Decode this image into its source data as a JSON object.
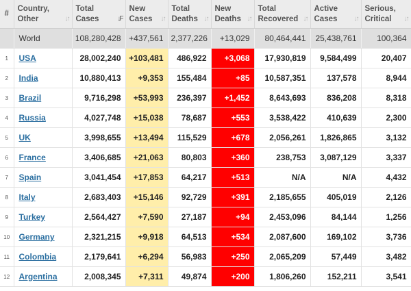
{
  "headers": [
    {
      "l1": "#",
      "l2": "",
      "sort": false
    },
    {
      "l1": "Country,",
      "l2": "Other",
      "sort": true
    },
    {
      "l1": "Total",
      "l2": "Cases",
      "sort": true,
      "active": true
    },
    {
      "l1": "New",
      "l2": "Cases",
      "sort": true
    },
    {
      "l1": "Total",
      "l2": "Deaths",
      "sort": true
    },
    {
      "l1": "New",
      "l2": "Deaths",
      "sort": true
    },
    {
      "l1": "Total",
      "l2": "Recovered",
      "sort": true
    },
    {
      "l1": "Active",
      "l2": "Cases",
      "sort": true
    },
    {
      "l1": "Serious,",
      "l2": "Critical",
      "sort": true
    }
  ],
  "sort_icons": {
    "inactive": "↓↑",
    "active": "↓F"
  },
  "world": {
    "country": "World",
    "total_cases": "108,280,428",
    "new_cases": "+437,561",
    "total_deaths": "2,377,226",
    "new_deaths": "+13,029",
    "total_recovered": "80,464,441",
    "active_cases": "25,438,761",
    "serious": "100,364"
  },
  "rows": [
    {
      "num": "1",
      "country": "USA",
      "total_cases": "28,002,240",
      "new_cases": "+103,481",
      "total_deaths": "486,922",
      "new_deaths": "+3,068",
      "total_recovered": "17,930,819",
      "active_cases": "9,584,499",
      "serious": "20,407"
    },
    {
      "num": "2",
      "country": "India",
      "total_cases": "10,880,413",
      "new_cases": "+9,353",
      "total_deaths": "155,484",
      "new_deaths": "+85",
      "total_recovered": "10,587,351",
      "active_cases": "137,578",
      "serious": "8,944"
    },
    {
      "num": "3",
      "country": "Brazil",
      "total_cases": "9,716,298",
      "new_cases": "+53,993",
      "total_deaths": "236,397",
      "new_deaths": "+1,452",
      "total_recovered": "8,643,693",
      "active_cases": "836,208",
      "serious": "8,318"
    },
    {
      "num": "4",
      "country": "Russia",
      "total_cases": "4,027,748",
      "new_cases": "+15,038",
      "total_deaths": "78,687",
      "new_deaths": "+553",
      "total_recovered": "3,538,422",
      "active_cases": "410,639",
      "serious": "2,300"
    },
    {
      "num": "5",
      "country": "UK",
      "total_cases": "3,998,655",
      "new_cases": "+13,494",
      "total_deaths": "115,529",
      "new_deaths": "+678",
      "total_recovered": "2,056,261",
      "active_cases": "1,826,865",
      "serious": "3,132"
    },
    {
      "num": "6",
      "country": "France",
      "total_cases": "3,406,685",
      "new_cases": "+21,063",
      "total_deaths": "80,803",
      "new_deaths": "+360",
      "total_recovered": "238,753",
      "active_cases": "3,087,129",
      "serious": "3,337"
    },
    {
      "num": "7",
      "country": "Spain",
      "total_cases": "3,041,454",
      "new_cases": "+17,853",
      "total_deaths": "64,217",
      "new_deaths": "+513",
      "total_recovered": "N/A",
      "active_cases": "N/A",
      "serious": "4,432"
    },
    {
      "num": "8",
      "country": "Italy",
      "total_cases": "2,683,403",
      "new_cases": "+15,146",
      "total_deaths": "92,729",
      "new_deaths": "+391",
      "total_recovered": "2,185,655",
      "active_cases": "405,019",
      "serious": "2,126"
    },
    {
      "num": "9",
      "country": "Turkey",
      "total_cases": "2,564,427",
      "new_cases": "+7,590",
      "total_deaths": "27,187",
      "new_deaths": "+94",
      "total_recovered": "2,453,096",
      "active_cases": "84,144",
      "serious": "1,256"
    },
    {
      "num": "10",
      "country": "Germany",
      "total_cases": "2,321,215",
      "new_cases": "+9,918",
      "total_deaths": "64,513",
      "new_deaths": "+534",
      "total_recovered": "2,087,600",
      "active_cases": "169,102",
      "serious": "3,736"
    },
    {
      "num": "11",
      "country": "Colombia",
      "total_cases": "2,179,641",
      "new_cases": "+6,294",
      "total_deaths": "56,983",
      "new_deaths": "+250",
      "total_recovered": "2,065,209",
      "active_cases": "57,449",
      "serious": "3,482"
    },
    {
      "num": "12",
      "country": "Argentina",
      "total_cases": "2,008,345",
      "new_cases": "+7,311",
      "total_deaths": "49,874",
      "new_deaths": "+200",
      "total_recovered": "1,806,260",
      "active_cases": "152,211",
      "serious": "3,541"
    }
  ],
  "colors": {
    "header_bg": "#ececec",
    "world_row_bg": "#dfdfdf",
    "new_cases_bg": "#ffeeaa",
    "new_deaths_bg": "#ff0000",
    "link": "#2a6ea0"
  }
}
